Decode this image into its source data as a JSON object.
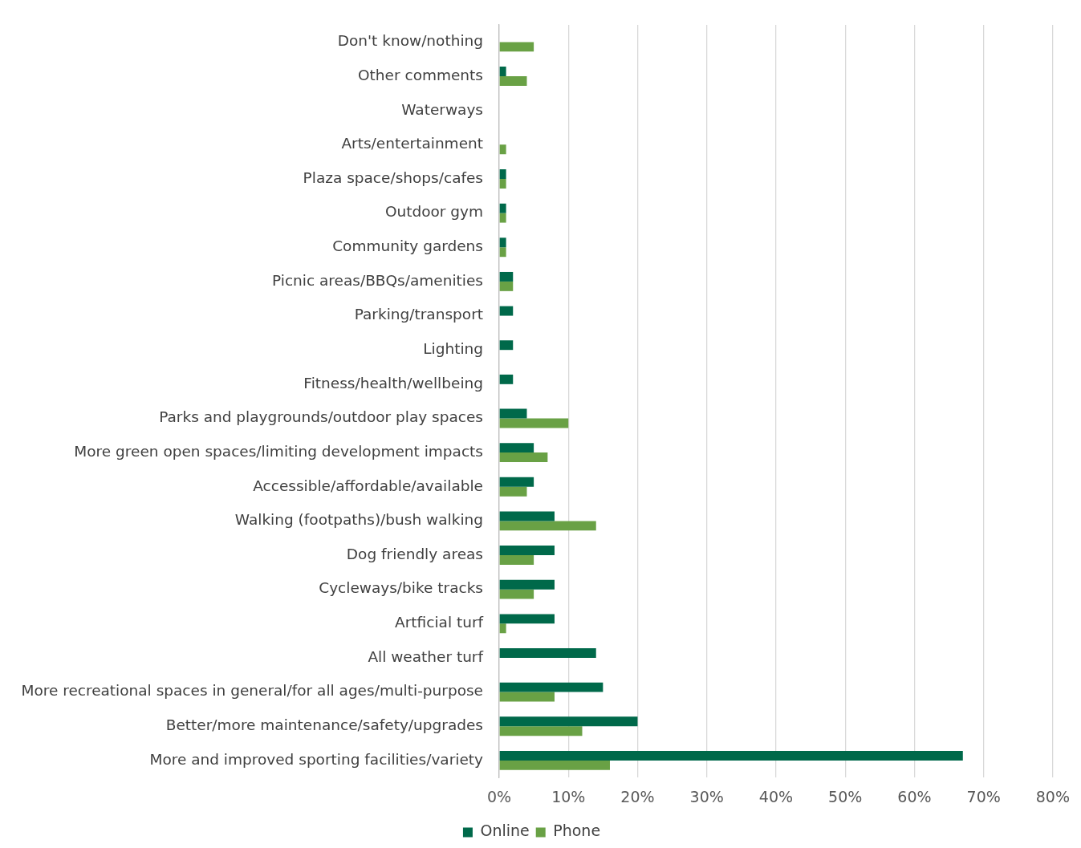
{
  "chart_data": {
    "type": "bar",
    "orientation": "horizontal",
    "categories": [
      "Don't know/nothing",
      "Other comments",
      "Waterways",
      "Arts/entertainment",
      "Plaza space/shops/cafes",
      "Outdoor gym",
      "Community gardens",
      "Picnic areas/BBQs/amenities",
      "Parking/transport",
      "Lighting",
      "Fitness/health/wellbeing",
      "Parks and playgrounds/outdoor play spaces",
      "More green open spaces/limiting development impacts",
      "Accessible/affordable/available",
      "Walking (footpaths)/bush walking",
      "Dog friendly areas",
      "Cycleways/bike tracks",
      "Artficial turf",
      "All weather turf",
      "More recreational spaces in general/for all ages/multi-purpose",
      "Better/more maintenance/safety/upgrades",
      "More and improved sporting facilities/variety"
    ],
    "series": [
      {
        "name": "Online",
        "color": "#00694a",
        "values": [
          0,
          1,
          0,
          0,
          1,
          1,
          1,
          2,
          2,
          2,
          2,
          4,
          5,
          5,
          8,
          8,
          8,
          8,
          14,
          15,
          20,
          67
        ]
      },
      {
        "name": "Phone",
        "color": "#69a145",
        "values": [
          5,
          4,
          0,
          1,
          1,
          1,
          1,
          2,
          0,
          0,
          0,
          10,
          7,
          4,
          14,
          5,
          5,
          1,
          0,
          8,
          12,
          16
        ]
      }
    ],
    "xlim": [
      0,
      80
    ],
    "xticks": [
      {
        "value": 0,
        "label": "0%"
      },
      {
        "value": 10,
        "label": "10%"
      },
      {
        "value": 20,
        "label": "20%"
      },
      {
        "value": 30,
        "label": "30%"
      },
      {
        "value": 40,
        "label": "40%"
      },
      {
        "value": 50,
        "label": "50%"
      },
      {
        "value": 60,
        "label": "60%"
      },
      {
        "value": 70,
        "label": "70%"
      },
      {
        "value": 80,
        "label": "80%"
      }
    ],
    "grid": "x",
    "legend": "bottom"
  }
}
